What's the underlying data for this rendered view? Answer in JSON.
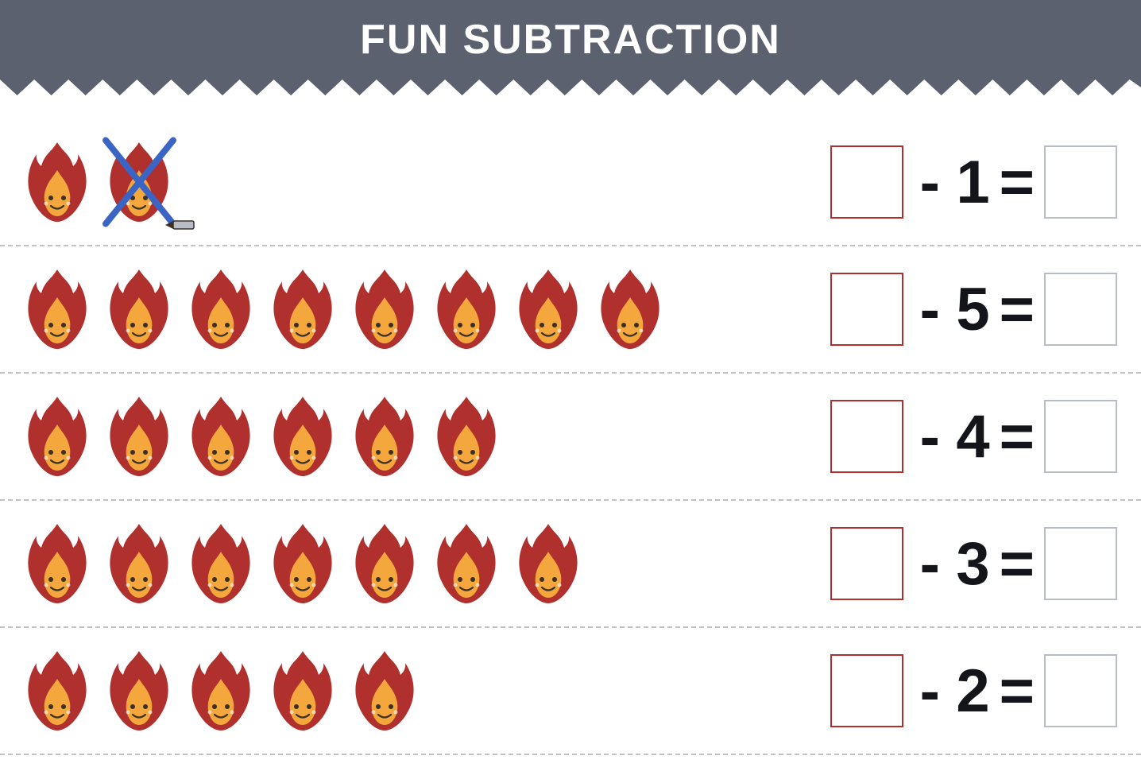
{
  "title": "FUN SUBTRACTION",
  "colors": {
    "header_bg": "#5b616e",
    "title_text": "#ffffff",
    "page_bg": "#ffffff",
    "dash": "#c0c0c0",
    "box_red": "#b0302e",
    "box_gray": "#b8bcc4",
    "op_text": "#13151a",
    "fire_outer": "#b0302e",
    "fire_inner": "#f3a73c",
    "fire_face": "#3b3026",
    "cross_blue": "#3a65c4",
    "pencil_body": "#b8bcc4",
    "pencil_dark": "#3b3026"
  },
  "fonts": {
    "title_size": 52,
    "op_size": 76
  },
  "rows": [
    {
      "total_fires": 2,
      "crossed": [
        1
      ],
      "subtract": "1",
      "show_pencil": true
    },
    {
      "total_fires": 8,
      "crossed": [],
      "subtract": "5",
      "show_pencil": false
    },
    {
      "total_fires": 6,
      "crossed": [],
      "subtract": "4",
      "show_pencil": false
    },
    {
      "total_fires": 7,
      "crossed": [],
      "subtract": "3",
      "show_pencil": false
    },
    {
      "total_fires": 5,
      "crossed": [],
      "subtract": "2",
      "show_pencil": false
    }
  ],
  "symbols": {
    "minus": "-",
    "equals": "="
  }
}
